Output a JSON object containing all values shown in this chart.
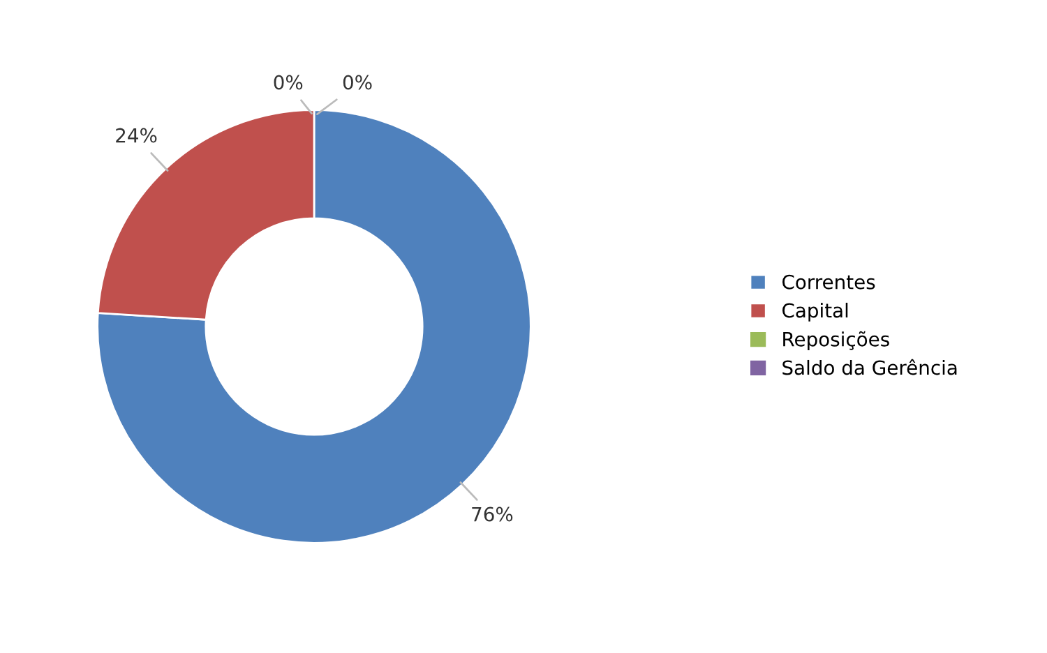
{
  "chart_data": {
    "type": "donut",
    "categories": [
      "Correntes",
      "Capital",
      "Reposições",
      "Saldo da Gerência"
    ],
    "values": [
      76,
      24,
      0,
      0
    ],
    "colors": [
      "#4f81bd",
      "#c0504d",
      "#9bbb59",
      "#8064a2"
    ],
    "value_labels": [
      "76%",
      "24%",
      "0%",
      "0%"
    ],
    "legend": "right"
  }
}
